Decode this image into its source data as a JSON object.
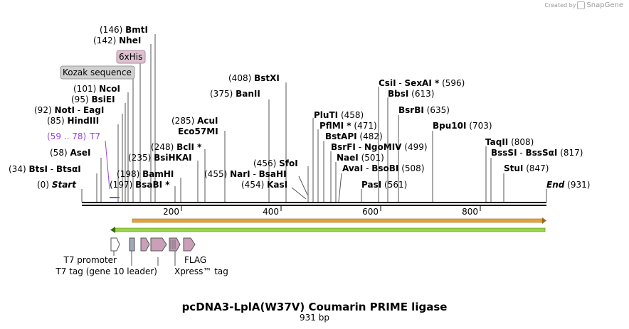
{
  "credit": {
    "created_by": "Created by",
    "brand": "SnapGene"
  },
  "title": "pcDNA3-LplA(W37V) Coumarin PRIME ligase",
  "subtitle": "931 bp",
  "map": {
    "total_bp": 931,
    "start_label": "Start",
    "end_label": "End",
    "start_pos": "(0)",
    "end_pos": "(931)"
  },
  "ticks": [
    "200",
    "400",
    "600",
    "800"
  ],
  "sites": [
    {
      "pos": "(146)",
      "name": "BmtI"
    },
    {
      "pos": "(142)",
      "name": "NheI"
    },
    {
      "pos": "(101)",
      "name": "NcoI"
    },
    {
      "pos": "(95)",
      "name": "BsiEI"
    },
    {
      "pos": "(92)",
      "name": "NotI",
      "sep": "-",
      "name2": "EagI"
    },
    {
      "pos": "(85)",
      "name": "HindIII"
    },
    {
      "pos": "(58)",
      "name": "AseI"
    },
    {
      "pos": "(34)",
      "name": "BtsI",
      "sep": "-",
      "name2": "BtsαI"
    },
    {
      "pos": "(285)",
      "name": "AcuI"
    },
    {
      "name": "Eco57MI"
    },
    {
      "pos": "(248)",
      "name": "BclI *"
    },
    {
      "pos": "(235)",
      "name": "BsiHKAI"
    },
    {
      "pos": "(198)",
      "name": "BamHI"
    },
    {
      "pos": "(197)",
      "name": "BsaBI *"
    },
    {
      "pos": "(408)",
      "name": "BstXI"
    },
    {
      "pos": "(375)",
      "name": "BanII"
    },
    {
      "pos": "(455)",
      "name": "NarI",
      "sep": "-",
      "name2": "BsaHI"
    },
    {
      "pos": "(456)",
      "name": "SfoI"
    },
    {
      "pos": "(454)",
      "name": "KasI"
    },
    {
      "name": "PluTI",
      "pos": "(458)"
    },
    {
      "name": "PflMI *",
      "pos": "(471)"
    },
    {
      "name": "BstAPI",
      "pos": "(482)"
    },
    {
      "name": "BsrFI",
      "sep": "-",
      "name2": "NgoMIV",
      "pos": "(499)"
    },
    {
      "name": "NaeI",
      "pos": "(501)"
    },
    {
      "name": "AvaI",
      "sep": "-",
      "name2": "BsoBI",
      "pos": "(508)"
    },
    {
      "name": "PasI",
      "pos": "(561)"
    },
    {
      "name": "CsiI",
      "sep": "-",
      "name2": "SexAI *",
      "pos": "(596)"
    },
    {
      "name": "BbsI",
      "pos": "(613)"
    },
    {
      "name": "BsrBI",
      "pos": "(635)"
    },
    {
      "name": "Bpu10I",
      "pos": "(703)"
    },
    {
      "name": "TaqII",
      "pos": "(808)"
    },
    {
      "name": "BssSI",
      "sep": "-",
      "name2": "BssSαI",
      "pos": "(817)"
    },
    {
      "name": "StuI",
      "pos": "(847)"
    }
  ],
  "features": {
    "sixxhis": "6xHis",
    "kozak": "Kozak sequence",
    "t7_primer_range": "(59 .. 78)",
    "t7_primer_name": "T7",
    "t7_promoter": "T7 promoter",
    "t7_tag": "T7 tag (gene 10 leader)",
    "flag": "FLAG",
    "xpress": "Xpress™ tag"
  },
  "colors": {
    "orange_bar": "#e8a33a",
    "green_bar": "#9bd44a",
    "feature_pink": "#c9a0b8",
    "feature_gray": "#a0a8b4",
    "primer_purple": "#9b40e0"
  }
}
